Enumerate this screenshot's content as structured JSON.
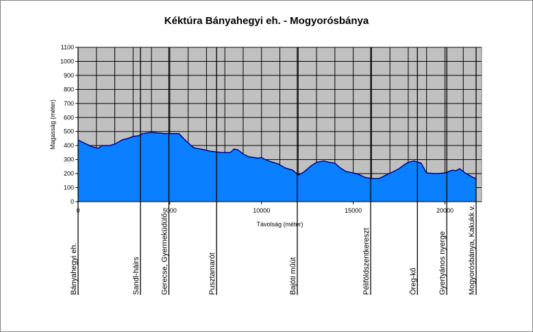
{
  "chart_data": {
    "type": "area",
    "title": "Kéktúra Bányahegyi eh. - Mogyorósbánya",
    "xlabel": "Távolság (méter)",
    "ylabel": "Magasság (méter)",
    "xlim": [
      0,
      22000
    ],
    "ylim": [
      0,
      1100
    ],
    "xticks": [
      0,
      5000,
      10000,
      15000,
      20000
    ],
    "yticks": [
      0,
      100,
      200,
      300,
      400,
      500,
      600,
      700,
      800,
      900,
      1000,
      1100
    ],
    "grid": true,
    "legend": "none",
    "series": [
      {
        "color": "#0A7FFF",
        "x": [
          0,
          300,
          700,
          1100,
          1300,
          1700,
          2000,
          2400,
          2700,
          3000,
          3300,
          3500,
          3800,
          4000,
          4300,
          4700,
          5000,
          5500,
          5900,
          6300,
          6700,
          7200,
          7800,
          8300,
          8500,
          8700,
          9000,
          9300,
          9600,
          9800,
          10000,
          10200,
          10500,
          10900,
          11300,
          11700,
          12000,
          12300,
          12700,
          13000,
          13400,
          13700,
          14000,
          14300,
          14600,
          15000,
          15300,
          15600,
          16000,
          16400,
          16800,
          17200,
          17500,
          17800,
          18000,
          18300,
          18700,
          19000,
          19500,
          20000,
          20400,
          20600,
          20800,
          21100,
          21500,
          21700
        ],
        "y": [
          440,
          420,
          395,
          380,
          400,
          400,
          410,
          440,
          450,
          465,
          470,
          485,
          490,
          495,
          490,
          485,
          485,
          485,
          430,
          385,
          375,
          360,
          350,
          350,
          375,
          370,
          340,
          320,
          315,
          310,
          315,
          300,
          285,
          270,
          240,
          225,
          190,
          210,
          255,
          280,
          290,
          280,
          275,
          240,
          215,
          205,
          195,
          175,
          165,
          165,
          190,
          215,
          235,
          265,
          280,
          290,
          275,
          205,
          200,
          205,
          225,
          220,
          235,
          205,
          175,
          165
        ]
      }
    ],
    "waypoints": [
      {
        "x": 0,
        "label": "Bányahegyi eh."
      },
      {
        "x": 3400,
        "label": "Sandl-háirs"
      },
      {
        "x": 4950,
        "label": "Gerecse, Gyermeküdülő"
      },
      {
        "x": 7550,
        "label": "Pusztamarót"
      },
      {
        "x": 11950,
        "label": "Bajóti műút"
      },
      {
        "x": 15950,
        "label": "Péliföldszentkereszt"
      },
      {
        "x": 18500,
        "label": "Öreg-kő"
      },
      {
        "x": 20100,
        "label": "Gyertyános nyerge"
      },
      {
        "x": 21700,
        "label": "Mogyorósbánya, Kakukk v."
      }
    ],
    "colors": {
      "plot_background": "#C0C0C0",
      "fill": "#0A7FFF",
      "outline": "#000080"
    }
  }
}
